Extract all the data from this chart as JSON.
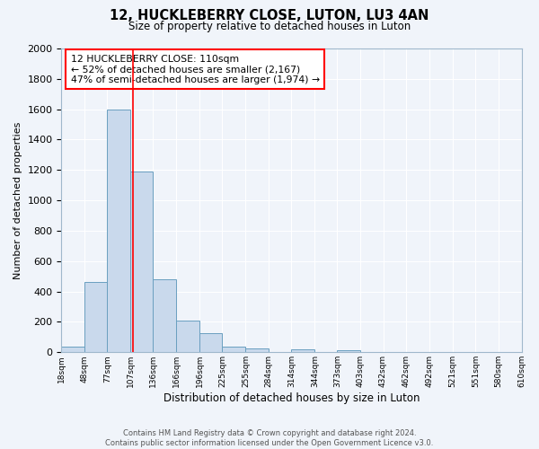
{
  "title": "12, HUCKLEBERRY CLOSE, LUTON, LU3 4AN",
  "subtitle": "Size of property relative to detached houses in Luton",
  "xlabel": "Distribution of detached houses by size in Luton",
  "ylabel": "Number of detached properties",
  "bar_color": "#c9d9ec",
  "bar_edge_color": "#6a9fc0",
  "background_color": "#f0f4fa",
  "grid_color": "#ffffff",
  "bin_edges": [
    18,
    48,
    77,
    107,
    136,
    166,
    196,
    225,
    255,
    284,
    314,
    344,
    373,
    403,
    432,
    462,
    492,
    521,
    551,
    580,
    610
  ],
  "bar_heights": [
    35,
    460,
    1600,
    1190,
    480,
    210,
    125,
    40,
    25,
    0,
    18,
    0,
    15,
    0,
    0,
    0,
    0,
    0,
    0,
    0
  ],
  "red_line_x": 110,
  "ylim": [
    0,
    2000
  ],
  "yticks": [
    0,
    200,
    400,
    600,
    800,
    1000,
    1200,
    1400,
    1600,
    1800,
    2000
  ],
  "annotation_line1": "12 HUCKLEBERRY CLOSE: 110sqm",
  "annotation_line2": "← 52% of detached houses are smaller (2,167)",
  "annotation_line3": "47% of semi-detached houses are larger (1,974) →",
  "footer_line1": "Contains HM Land Registry data © Crown copyright and database right 2024.",
  "footer_line2": "Contains public sector information licensed under the Open Government Licence v3.0."
}
